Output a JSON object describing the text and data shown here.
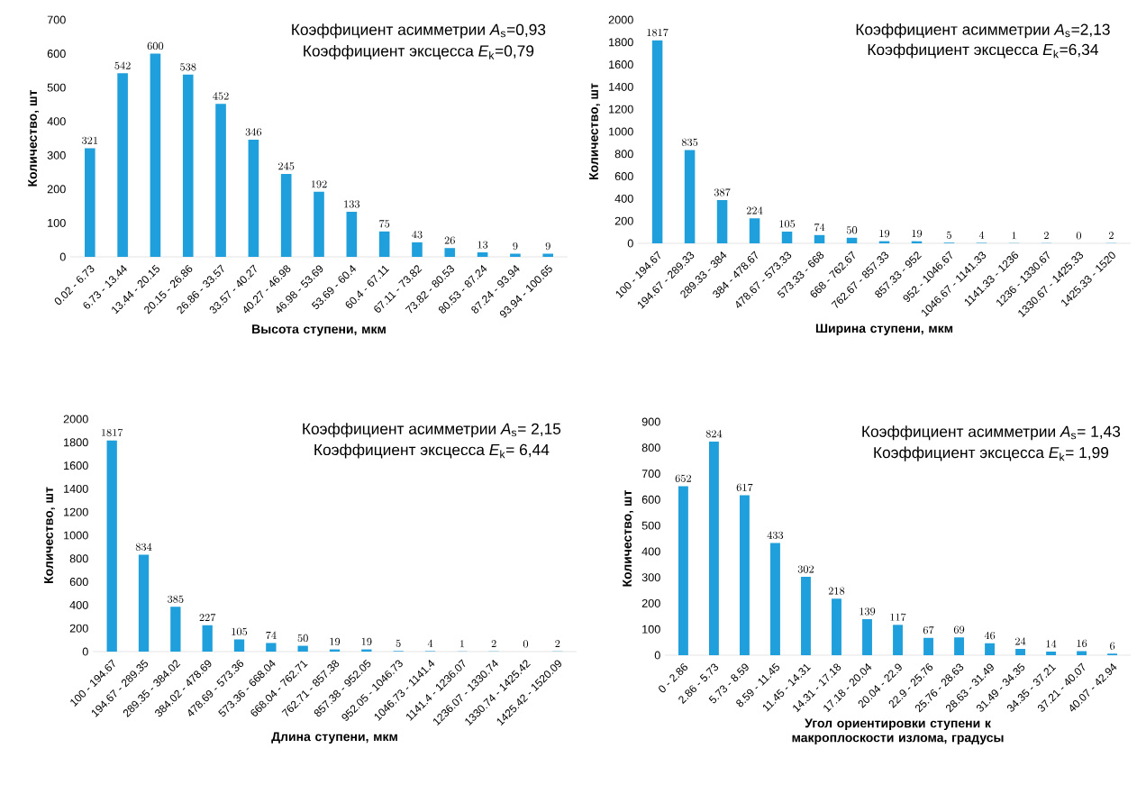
{
  "chart_data": [
    {
      "type": "bar",
      "xlabel": "Высота ступени, мкм",
      "ylabel": "Количество, шт",
      "categories": [
        "0.02 - 6.73",
        "6.73 - 13.44",
        "13.44 - 20.15",
        "20.15 - 26.86",
        "26.86 - 33.57",
        "33.57 - 40.27",
        "40.27 - 46.98",
        "46.98 - 53.69",
        "53.69 - 60.4",
        "60.4 - 67.11",
        "67.11 - 73.82",
        "73.82 - 80.53",
        "80.53 - 87.24",
        "87.24 - 93.94",
        "93.94 - 100.65"
      ],
      "values": [
        321,
        542,
        600,
        538,
        452,
        346,
        245,
        192,
        133,
        75,
        43,
        26,
        13,
        9,
        9
      ],
      "color": "#1f9fdb",
      "ylim": [
        0,
        700
      ],
      "yticks": [
        0,
        100,
        200,
        300,
        400,
        500,
        600,
        700
      ],
      "data_labels": true,
      "grid": false,
      "annotations": [
        "Коэффициент асимметрии *A*$_{s}$=0,93",
        "Коэффициент эксцесса *E*$_{k}$=0,79"
      ]
    },
    {
      "type": "bar",
      "xlabel": "Ширина ступени, мкм",
      "ylabel": "Количество, шт",
      "categories": [
        "100 - 194.67",
        "194.67 - 289.33",
        "289.33 - 384",
        "384 - 478.67",
        "478.67 - 573.33",
        "573.33 - 668",
        "668 - 762.67",
        "762.67 - 857.33",
        "857.33 - 952",
        "952 - 1046.67",
        "1046.67 - 1141.33",
        "1141.33 - 1236",
        "1236 - 1330.67",
        "1330.67 - 1425.33",
        "1425.33 - 1520"
      ],
      "values": [
        1817,
        835,
        387,
        224,
        105,
        74,
        50,
        19,
        19,
        5,
        4,
        1,
        2,
        0,
        2
      ],
      "color": "#1f9fdb",
      "ylim": [
        0,
        2000
      ],
      "yticks": [
        0,
        200,
        400,
        600,
        800,
        1000,
        1200,
        1400,
        1600,
        1800,
        2000
      ],
      "data_labels": true,
      "grid": false,
      "annotations": [
        "Коэффициент асимметрии *A*$_{s}$=2,13",
        "Коэффициент эксцесса *E*$_{k}$=6,34"
      ]
    },
    {
      "type": "bar",
      "xlabel": "Длина ступени, мкм",
      "ylabel": "Количество, шт",
      "categories": [
        "100 - 194.67",
        "194.67 - 289.35",
        "289.35 - 384.02",
        "384.02 - 478.69",
        "478.69 - 573.36",
        "573.36 - 668.04",
        "668.04 - 762.71",
        "762.71 - 857.38",
        "857.38 - 952.05",
        "952.05 - 1046.73",
        "1046.73 - 1141.4",
        "1141.4 - 1236.07",
        "1236.07 - 1330.74",
        "1330.74 - 1425.42",
        "1425.42 - 1520.09"
      ],
      "values": [
        1817,
        834,
        385,
        227,
        105,
        74,
        50,
        19,
        19,
        5,
        4,
        1,
        2,
        0,
        2
      ],
      "color": "#1f9fdb",
      "ylim": [
        0,
        2000
      ],
      "yticks": [
        0,
        200,
        400,
        600,
        800,
        1000,
        1200,
        1400,
        1600,
        1800,
        2000
      ],
      "data_labels": true,
      "grid": false,
      "annotations": [
        "Коэффициент асимметрии *A*$_{s}$= 2,15",
        "Коэффициент эксцесса *E*$_{k}$= 6,44"
      ]
    },
    {
      "type": "bar",
      "xlabel": "Угол ориентировки ступени к макроплоскости излома, градусы",
      "ylabel": "Количество, шт",
      "categories": [
        "0 - 2.86",
        "2.86 - 5.73",
        "5.73 - 8.59",
        "8.59 - 11.45",
        "11.45 - 14.31",
        "14.31 - 17.18",
        "17.18 - 20.04",
        "20.04 - 22.9",
        "22.9 - 25.76",
        "25.76 - 28.63",
        "28.63 - 31.49",
        "31.49 - 34.35",
        "34.35 - 37.21",
        "37.21 - 40.07",
        "40.07 - 42.94"
      ],
      "values": [
        652,
        824,
        617,
        433,
        302,
        218,
        139,
        117,
        67,
        69,
        46,
        24,
        14,
        16,
        6
      ],
      "color": "#1f9fdb",
      "ylim": [
        0,
        900
      ],
      "yticks": [
        0,
        100,
        200,
        300,
        400,
        500,
        600,
        700,
        800,
        900
      ],
      "data_labels": true,
      "grid": false,
      "annotations": [
        "Коэффициент асимметрии *A*$_{s}$= 1,43",
        "Коэффициент эксцесса *E*$_{k}$= 1,99"
      ]
    }
  ]
}
